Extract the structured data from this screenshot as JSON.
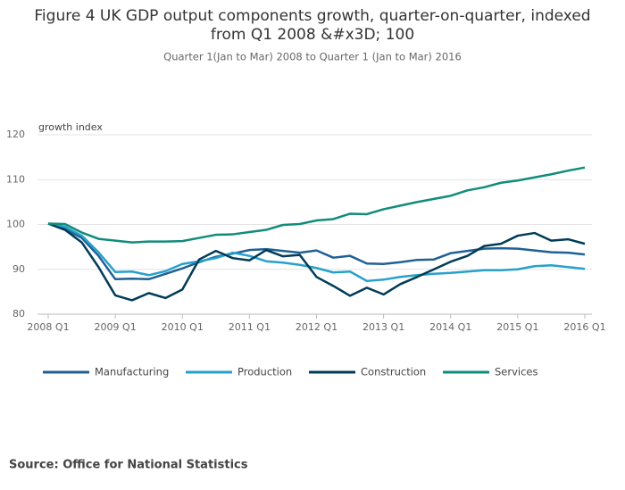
{
  "chart_data": {
    "type": "line",
    "title": "Figure 4 UK GDP output components growth, quarter-on-quarter, indexed from Q1 2008 &#x3D; 100",
    "subtitle": "Quarter 1(Jan to Mar) 2008 to Quarter 1 (Jan to Mar) 2016",
    "y_label": "growth index",
    "source": "Source: Office for National Statistics",
    "categories": [
      "2008 Q1",
      null,
      null,
      null,
      "2009 Q1",
      null,
      null,
      null,
      "2010 Q1",
      null,
      null,
      null,
      "2011 Q1",
      null,
      null,
      null,
      "2012 Q1",
      null,
      null,
      null,
      "2013 Q1",
      null,
      null,
      null,
      "2014 Q1",
      null,
      null,
      null,
      "2015 Q1",
      null,
      null,
      null,
      "2016 Q1"
    ],
    "series": [
      {
        "name": "Manufacturing",
        "color": "#206095",
        "values": [
          100.2,
          99,
          97,
          93,
          87.8,
          87.9,
          87.8,
          89,
          90.2,
          91.6,
          92.8,
          93.5,
          94.3,
          94.5,
          94.1,
          93.7,
          94.2,
          92.6,
          93,
          91.3,
          91.2,
          91.6,
          92.1,
          92.2,
          93.6,
          94.1,
          94.6,
          94.7,
          94.6,
          94.2,
          93.8,
          93.7,
          93.3
        ]
      },
      {
        "name": "Production",
        "color": "#27a0cc",
        "values": [
          100.2,
          99.5,
          97.5,
          93.8,
          89.4,
          89.5,
          88.7,
          89.6,
          91.2,
          91.8,
          92.5,
          93.7,
          93,
          91.8,
          91.5,
          91,
          90.3,
          89.3,
          89.5,
          87.4,
          87.7,
          88.3,
          88.7,
          89,
          89.2,
          89.5,
          89.8,
          89.8,
          90,
          90.7,
          90.9,
          90.5,
          90.1
        ]
      },
      {
        "name": "Construction",
        "color": "#003c57",
        "values": [
          100.2,
          98.8,
          96,
          90.5,
          84.2,
          83.1,
          84.7,
          83.6,
          85.5,
          92.2,
          94.1,
          92.5,
          92,
          94.3,
          92.9,
          93.2,
          88.3,
          86.3,
          84.1,
          85.9,
          84.4,
          86.7,
          88.3,
          90,
          91.7,
          93,
          95.2,
          95.7,
          97.5,
          98.1,
          96.4,
          96.7,
          95.7
        ]
      },
      {
        "name": "Services",
        "color": "#118c7b",
        "values": [
          100.2,
          100.1,
          98.2,
          96.8,
          96.4,
          96,
          96.2,
          96.2,
          96.3,
          97,
          97.7,
          97.8,
          98.3,
          98.8,
          99.9,
          100.1,
          100.9,
          101.2,
          102.4,
          102.3,
          103.4,
          104.2,
          105,
          105.7,
          106.4,
          107.6,
          108.3,
          109.3,
          109.8,
          110.5,
          111.2,
          112,
          112.7
        ]
      }
    ],
    "ylim": [
      80,
      120
    ],
    "yticks": [
      80,
      90,
      100,
      110,
      120
    ],
    "grid": true
  }
}
